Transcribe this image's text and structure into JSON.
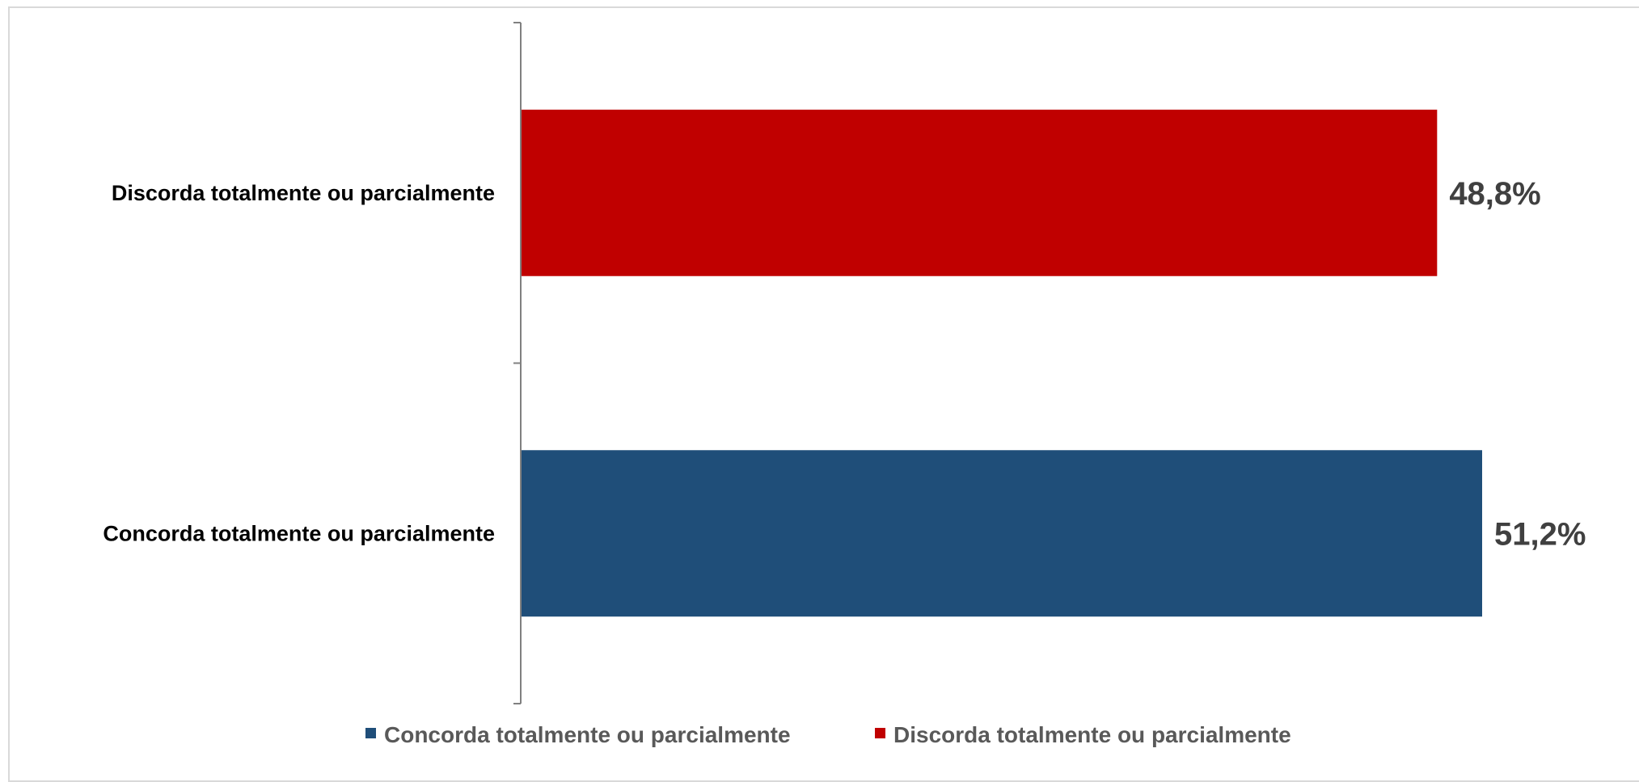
{
  "chart_data": {
    "type": "bar",
    "orientation": "horizontal",
    "categories": [
      "Concorda totalmente ou parcialmente",
      "Discorda totalmente ou parcialmente"
    ],
    "values": [
      51.2,
      48.8
    ],
    "value_labels": [
      "51,2%",
      "48,8%"
    ],
    "colors": [
      "#1F4E79",
      "#C00000"
    ],
    "xlim": [
      0,
      60
    ],
    "grid": false,
    "legend": {
      "position": "bottom",
      "entries": [
        "Concorda totalmente ou parcialmente",
        "Discorda totalmente ou parcialmente"
      ]
    },
    "title": "",
    "xlabel": "",
    "ylabel": ""
  }
}
